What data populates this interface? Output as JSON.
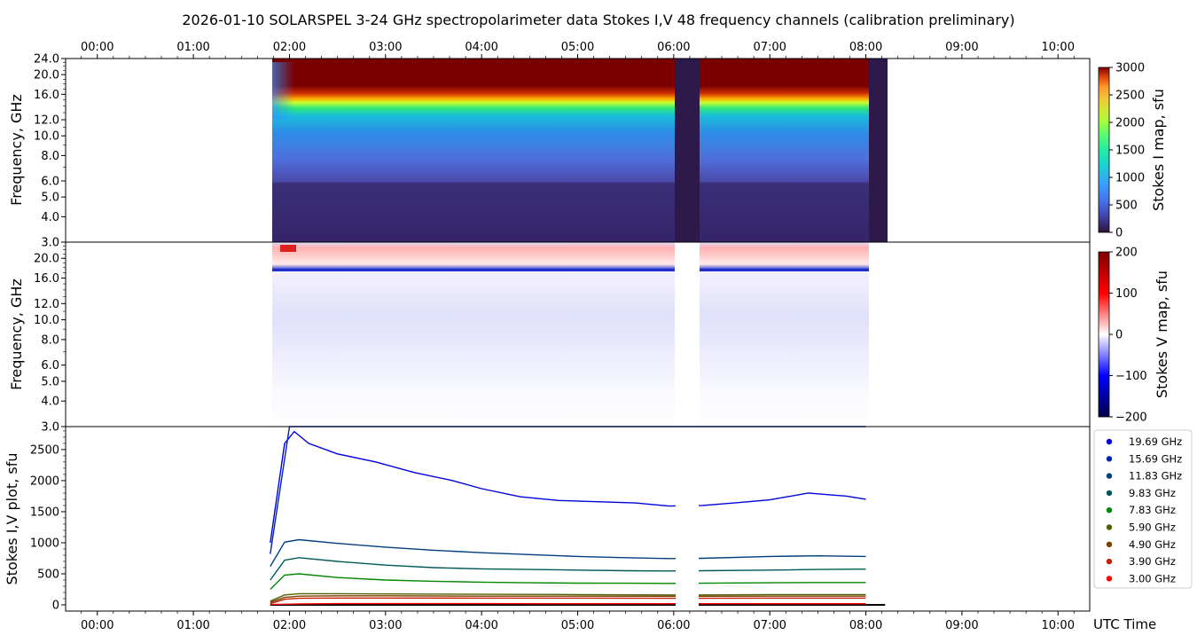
{
  "title": "2026-01-10  SOLARSPEL  3-24 GHz spectropolarimeter data   Stokes I,V   48 frequency channels   (calibration preliminary)",
  "colors": {
    "zero_line": "#000000",
    "axis": "#000000"
  },
  "chart_data": [
    {
      "type": "heatmap",
      "name": "stokes-i-map",
      "ylabel": "Frequency, GHz",
      "x_ticks_top": [
        "00:00",
        "01:00",
        "02:00",
        "03:00",
        "04:00",
        "05:00",
        "06:00",
        "07:00",
        "08:00",
        "09:00",
        "10:00"
      ],
      "xlim_hours": [
        -0.33,
        10.33
      ],
      "y_ticks": [
        "3.0",
        "4.0",
        "5.0",
        "6.0",
        "8.0",
        "10.0",
        "12.0",
        "16.0",
        "20.0",
        "24.0"
      ],
      "y_tick_values": [
        3.0,
        4.0,
        5.0,
        6.0,
        8.0,
        10.0,
        12.0,
        16.0,
        20.0,
        24.0
      ],
      "ylim": [
        3.0,
        24.0
      ],
      "y_scale": "log",
      "data_spans_hours": [
        [
          1.8,
          6.0
        ],
        [
          6.27,
          8.03
        ],
        [
          8.03,
          8.22
        ]
      ],
      "gap_spans_hours": [
        [
          6.0,
          6.27
        ]
      ],
      "colorbar": {
        "label": "Stokes I map, sfu",
        "ticks": [
          "0",
          "500",
          "1000",
          "1500",
          "2000",
          "2500",
          "3000"
        ],
        "range": [
          0,
          3000
        ],
        "colormap": "rainbow-like (dark purple to dark red)"
      }
    },
    {
      "type": "heatmap",
      "name": "stokes-v-map",
      "ylabel": "Frequency, GHz",
      "y_ticks": [
        "3.0",
        "4.0",
        "5.0",
        "6.0",
        "8.0",
        "10.0",
        "12.0",
        "16.0",
        "20.0"
      ],
      "y_tick_values": [
        3.0,
        4.0,
        5.0,
        6.0,
        8.0,
        10.0,
        12.0,
        16.0,
        20.0
      ],
      "ylim": [
        3.0,
        24.0
      ],
      "y_scale": "log",
      "colorbar": {
        "label": "Stokes V map, sfu",
        "ticks": [
          "−200",
          "−100",
          "0",
          "100",
          "200"
        ],
        "range": [
          -200,
          200
        ],
        "colormap": "seismic (blue-white-red)"
      }
    },
    {
      "type": "line",
      "name": "stokes-iv-plot",
      "ylabel": "Stokes I,V plot, sfu",
      "xlabel": "UTC Time",
      "x_ticks": [
        "00:00",
        "01:00",
        "02:00",
        "03:00",
        "04:00",
        "05:00",
        "06:00",
        "07:00",
        "08:00",
        "09:00",
        "10:00"
      ],
      "xlim_hours": [
        -0.33,
        10.33
      ],
      "y_ticks": [
        "0",
        "500",
        "1000",
        "1500",
        "2000",
        "2500"
      ],
      "ylim": [
        -100,
        2870
      ],
      "legend_position": "right",
      "series": [
        {
          "name": "19.69 GHz",
          "color": "#0000dd",
          "x": [
            1.8,
            1.95,
            2.05,
            2.2,
            2.5,
            2.9,
            3.3,
            3.7,
            4.0,
            4.4,
            4.8,
            5.2,
            5.6,
            5.95,
            6.3,
            6.7,
            7.0,
            7.4,
            7.8,
            8.0
          ],
          "y": [
            1000,
            2600,
            2790,
            2600,
            2430,
            2300,
            2130,
            2000,
            1870,
            1740,
            1680,
            1660,
            1640,
            1590,
            1600,
            1650,
            1690,
            1800,
            1750,
            1700
          ]
        },
        {
          "name": "15.69 GHz",
          "color": "#0022bb",
          "x": [
            1.8,
            2.0,
            2.3,
            3.0,
            4.0,
            5.0,
            6.0,
            6.3,
            7.0,
            8.0
          ],
          "y": [
            820,
            2950,
            2990,
            2990,
            2990,
            2990,
            2990,
            2990,
            2990,
            2990
          ]
        },
        {
          "name": "11.83 GHz",
          "color": "#003f7f",
          "x": [
            1.8,
            1.95,
            2.1,
            2.5,
            3.0,
            3.5,
            4.0,
            4.5,
            5.0,
            5.5,
            5.95,
            6.3,
            7.0,
            7.5,
            8.0
          ],
          "y": [
            620,
            1010,
            1050,
            990,
            930,
            880,
            840,
            810,
            780,
            760,
            745,
            750,
            780,
            790,
            780
          ]
        },
        {
          "name": "9.83 GHz",
          "color": "#005858",
          "x": [
            1.8,
            1.95,
            2.1,
            2.5,
            3.0,
            3.5,
            4.0,
            4.5,
            5.0,
            5.5,
            5.95,
            6.3,
            7.0,
            7.5,
            8.0
          ],
          "y": [
            400,
            720,
            760,
            700,
            640,
            600,
            580,
            570,
            560,
            550,
            545,
            550,
            560,
            570,
            575
          ]
        },
        {
          "name": "7.83 GHz",
          "color": "#008800",
          "x": [
            1.8,
            1.95,
            2.1,
            2.5,
            3.0,
            3.5,
            4.0,
            4.5,
            5.0,
            5.5,
            5.95,
            6.3,
            7.0,
            7.5,
            8.0
          ],
          "y": [
            250,
            480,
            500,
            440,
            400,
            380,
            365,
            355,
            350,
            348,
            345,
            348,
            355,
            360,
            360
          ]
        },
        {
          "name": "5.90 GHz",
          "color": "#4f6200",
          "x": [
            1.8,
            1.95,
            2.1,
            2.5,
            3.0,
            4.0,
            5.0,
            5.95,
            6.3,
            7.0,
            8.0
          ],
          "y": [
            60,
            160,
            180,
            180,
            175,
            170,
            165,
            160,
            160,
            165,
            165
          ]
        },
        {
          "name": "4.90 GHz",
          "color": "#7f3f00",
          "x": [
            1.8,
            1.95,
            2.1,
            2.5,
            3.0,
            4.0,
            5.0,
            5.95,
            6.3,
            7.0,
            8.0
          ],
          "y": [
            40,
            120,
            140,
            145,
            145,
            140,
            140,
            138,
            138,
            140,
            140
          ]
        },
        {
          "name": "3.90 GHz",
          "color": "#c81e00",
          "x": [
            1.8,
            1.95,
            2.1,
            2.5,
            3.0,
            4.0,
            5.0,
            5.95,
            6.3,
            7.0,
            8.0
          ],
          "y": [
            20,
            90,
            105,
            110,
            110,
            108,
            108,
            106,
            106,
            108,
            108
          ]
        },
        {
          "name": "3.00 GHz",
          "color": "#ff0000",
          "x": [
            1.8,
            1.95,
            2.1,
            2.5,
            3.0,
            4.0,
            5.0,
            5.95,
            6.3,
            7.0,
            8.0
          ],
          "y": [
            5,
            10,
            15,
            20,
            20,
            20,
            18,
            18,
            18,
            18,
            18
          ]
        }
      ]
    }
  ]
}
